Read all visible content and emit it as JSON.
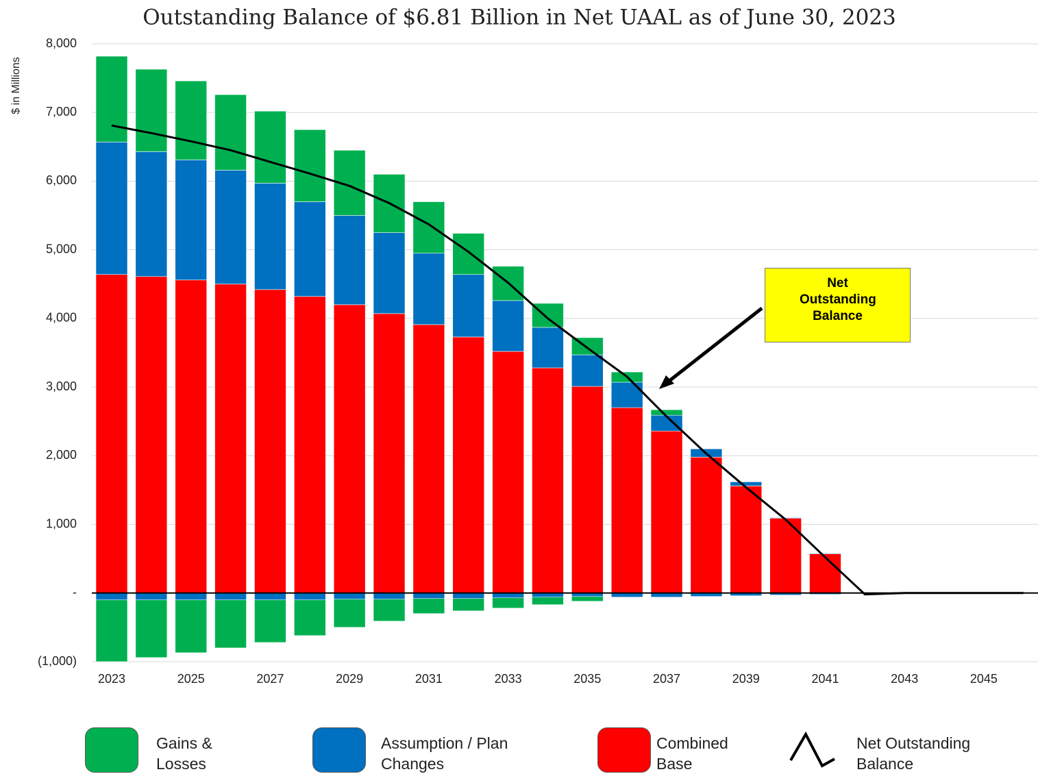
{
  "chart_data": {
    "type": "bar",
    "title": "Outstanding Balance of $6.81 Billion in Net UAAL as of June 30, 2023",
    "y_label": "$ in Millions",
    "annotation": "Net Outstanding Balance",
    "categories": [
      "2023",
      null,
      "2025",
      null,
      "2027",
      null,
      "2029",
      null,
      "2031",
      null,
      "2033",
      null,
      "2035",
      null,
      "2037",
      null,
      "2039",
      null,
      "2041",
      null,
      "2043",
      null,
      "2045",
      null
    ],
    "ylim": [
      -1000,
      8000
    ],
    "yticks": [
      {
        "value": -1000,
        "label": "(1,000)"
      },
      {
        "value": 0,
        "label": "-"
      },
      {
        "value": 1000,
        "label": "1,000"
      },
      {
        "value": 2000,
        "label": "2,000"
      },
      {
        "value": 3000,
        "label": "3,000"
      },
      {
        "value": 4000,
        "label": "4,000"
      },
      {
        "value": 5000,
        "label": "5,000"
      },
      {
        "value": 6000,
        "label": "6,000"
      },
      {
        "value": 7000,
        "label": "7,000"
      },
      {
        "value": 8000,
        "label": "8,000"
      }
    ],
    "grid": true,
    "series": [
      {
        "name": "Gains & Losses",
        "color": "#00b050",
        "values": [
          1250,
          1200,
          1150,
          1100,
          1050,
          1050,
          950,
          850,
          750,
          600,
          500,
          350,
          250,
          150,
          80,
          0,
          0,
          0,
          0,
          0,
          0,
          0,
          0,
          0
        ],
        "negative_values": [
          -900,
          -840,
          -770,
          -700,
          -620,
          -520,
          -410,
          -320,
          -220,
          -180,
          -150,
          -110,
          -70,
          0,
          0,
          0,
          0,
          0,
          0,
          0,
          0,
          0,
          0,
          0
        ]
      },
      {
        "name": "Assumption / Plan Changes",
        "color": "#0070c0",
        "values": [
          1930,
          1820,
          1750,
          1660,
          1550,
          1380,
          1300,
          1180,
          1040,
          910,
          740,
          590,
          460,
          370,
          230,
          120,
          60,
          10,
          10,
          0,
          0,
          0,
          0,
          0
        ],
        "negative_values": [
          -100,
          -100,
          -100,
          -100,
          -100,
          -100,
          -90,
          -90,
          -80,
          -80,
          -70,
          -60,
          -50,
          -60,
          -60,
          -50,
          -40,
          -30,
          -20,
          0,
          0,
          0,
          0,
          0
        ]
      },
      {
        "name": "Combined Base",
        "color": "#ff0000",
        "values": [
          4640,
          4610,
          4560,
          4500,
          4420,
          4320,
          4200,
          4070,
          3910,
          3730,
          3520,
          3280,
          3010,
          2700,
          2360,
          1980,
          1560,
          1090,
          570,
          0,
          0,
          0,
          0,
          0
        ]
      },
      {
        "name": "Net Outstanding Balance",
        "type": "line",
        "color": "#000000",
        "values": [
          6810,
          6700,
          6580,
          6450,
          6280,
          6110,
          5930,
          5680,
          5370,
          4970,
          4520,
          4000,
          3570,
          3150,
          2570,
          2030,
          1540,
          1070,
          520,
          -20,
          0,
          0,
          0,
          0
        ]
      }
    ]
  }
}
